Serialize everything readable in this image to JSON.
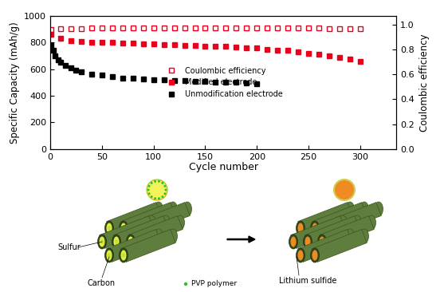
{
  "chart_data": {
    "type": "line",
    "x_label": "Cycle number",
    "y_label": "Specific Capacity (mAh/g)",
    "y2_label": "Coulombic efficiency",
    "xlim": [
      0,
      335
    ],
    "xticks": [
      0,
      50,
      100,
      150,
      200,
      250,
      300
    ],
    "ylim": [
      0,
      1000
    ],
    "yticks": [
      0,
      200,
      400,
      600,
      800,
      1000
    ],
    "y2lim": [
      0,
      1.07
    ],
    "y2ticks": [
      0.0,
      0.2,
      0.4,
      0.6,
      0.8,
      1.0
    ],
    "legend": "center",
    "series": [
      {
        "name": "Coulombic efficiency",
        "axis": "y2",
        "color": "#e8001c",
        "marker": "open_square",
        "line_style": "none",
        "x": [
          1,
          10,
          20,
          30,
          40,
          50,
          60,
          70,
          80,
          90,
          100,
          110,
          120,
          130,
          140,
          150,
          160,
          170,
          180,
          190,
          200,
          210,
          220,
          230,
          240,
          250,
          260,
          270,
          280,
          290,
          300
        ],
        "values": [
          0.96,
          0.97,
          0.97,
          0.97,
          0.975,
          0.975,
          0.975,
          0.975,
          0.975,
          0.975,
          0.975,
          0.975,
          0.975,
          0.975,
          0.975,
          0.975,
          0.975,
          0.975,
          0.975,
          0.975,
          0.975,
          0.975,
          0.975,
          0.975,
          0.975,
          0.975,
          0.975,
          0.97,
          0.97,
          0.97,
          0.97
        ]
      },
      {
        "name": "Modified electrode",
        "color": "#e8001c",
        "marker": "square",
        "line_style": "none",
        "x": [
          1,
          10,
          20,
          30,
          40,
          50,
          60,
          70,
          80,
          90,
          100,
          110,
          120,
          130,
          140,
          150,
          160,
          170,
          180,
          190,
          200,
          210,
          220,
          230,
          240,
          250,
          260,
          270,
          280,
          290,
          300
        ],
        "values": [
          860,
          830,
          815,
          810,
          805,
          800,
          800,
          795,
          795,
          790,
          790,
          785,
          785,
          780,
          780,
          775,
          770,
          770,
          765,
          760,
          760,
          750,
          745,
          740,
          730,
          720,
          710,
          700,
          690,
          675,
          660
        ]
      },
      {
        "name": "Unmodification electrode",
        "color": "#000000",
        "marker": "square",
        "line_style": "none",
        "x": [
          1,
          3,
          5,
          8,
          10,
          15,
          20,
          25,
          30,
          40,
          50,
          60,
          70,
          80,
          90,
          100,
          110,
          120,
          130,
          140,
          150,
          160,
          170,
          180,
          190,
          200
        ],
        "values": [
          780,
          740,
          700,
          670,
          650,
          630,
          610,
          595,
          580,
          565,
          555,
          545,
          535,
          530,
          525,
          520,
          518,
          515,
          512,
          510,
          508,
          505,
          502,
          500,
          497,
          490
        ]
      }
    ]
  },
  "diagram": {
    "labels": {
      "sulfur": "Sulfur",
      "carbon": "Carbon",
      "polymer": "PVP polymer",
      "product": "Lithium sulfide"
    }
  }
}
